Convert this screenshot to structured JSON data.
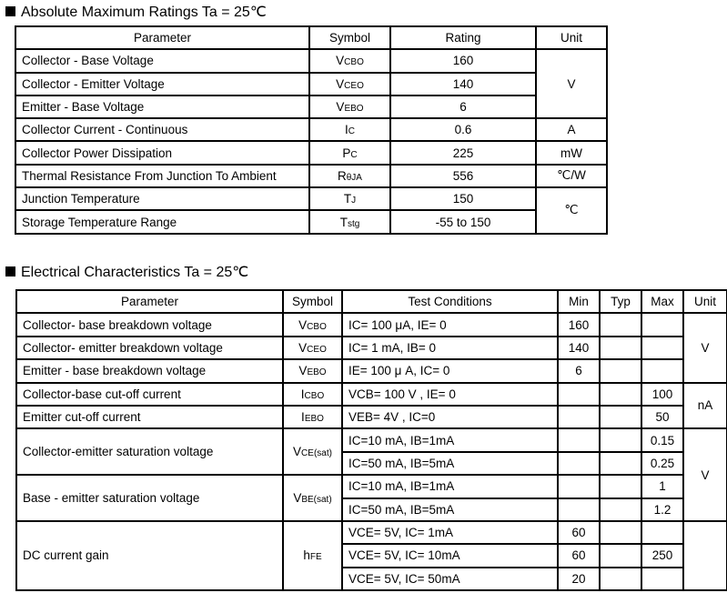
{
  "amr": {
    "title": "Absolute Maximum Ratings Ta = 25℃",
    "headers": [
      "Parameter",
      "Symbol",
      "Rating",
      "Unit"
    ],
    "rows": [
      {
        "param": "Collector - Base Voltage",
        "sym": "V",
        "sub": "CBO",
        "rating": "160"
      },
      {
        "param": "Collector - Emitter Voltage",
        "sym": "V",
        "sub": "CEO",
        "rating": "140"
      },
      {
        "param": "Emitter - Base Voltage",
        "sym": "V",
        "sub": "EBO",
        "rating": "6"
      },
      {
        "param": "Collector Current  - Continuous",
        "sym": "I",
        "sub": "C",
        "rating": "0.6"
      },
      {
        "param": "Collector Power Dissipation",
        "sym": "P",
        "sub": "C",
        "rating": "225"
      },
      {
        "param": "Thermal Resistance From Junction To Ambient",
        "sym": "R",
        "sub": "θJA",
        "rating": "556"
      },
      {
        "param": "Junction Temperature",
        "sym": "T",
        "sub": "J",
        "rating": "150"
      },
      {
        "param": "Storage Temperature Range",
        "sym": "T",
        "sub": "stg",
        "rating": "-55 to 150"
      }
    ],
    "units": [
      "V",
      "A",
      "mW",
      "℃/W",
      "℃"
    ]
  },
  "ec": {
    "title": "Electrical Characteristics Ta = 25℃",
    "headers": [
      "Parameter",
      "Symbol",
      "Test Conditions",
      "Min",
      "Typ",
      "Max",
      "Unit"
    ],
    "rows": [
      {
        "param": "Collector- base breakdown voltage",
        "sym": "V",
        "sub": "CBO",
        "cond": "IC= 100 μA,   IE= 0",
        "min": "160",
        "typ": "",
        "max": ""
      },
      {
        "param": "Collector- emitter breakdown voltage",
        "sym": "V",
        "sub": "CEO",
        "cond": "IC= 1 mA,   IB= 0",
        "min": "140",
        "typ": "",
        "max": ""
      },
      {
        "param": "Emitter - base breakdown voltage",
        "sym": "V",
        "sub": "EBO",
        "cond": "IE= 100 μ A,   IC= 0",
        "min": "6",
        "typ": "",
        "max": ""
      },
      {
        "param": "Collector-base cut-off current",
        "sym": "I",
        "sub": "CBO",
        "cond": "VCB= 100 V , IE= 0",
        "min": "",
        "typ": "",
        "max": "100"
      },
      {
        "param": "Emitter cut-off current",
        "sym": "I",
        "sub": "EBO",
        "cond": "VEB= 4V , IC=0",
        "min": "",
        "typ": "",
        "max": "50"
      }
    ],
    "groups": [
      {
        "param": "Collector-emitter saturation voltage",
        "sym": "V",
        "sub": "CE(sat)",
        "lines": [
          {
            "cond": "IC=10 mA, IB=1mA",
            "min": "",
            "typ": "",
            "max": "0.15"
          },
          {
            "cond": "IC=50 mA, IB=5mA",
            "min": "",
            "typ": "",
            "max": "0.25"
          }
        ]
      },
      {
        "param": "Base - emitter saturation voltage",
        "sym": "V",
        "sub": "BE(sat)",
        "lines": [
          {
            "cond": "IC=10 mA, IB=1mA",
            "min": "",
            "typ": "",
            "max": "1"
          },
          {
            "cond": "IC=50 mA, IB=5mA",
            "min": "",
            "typ": "",
            "max": "1.2"
          }
        ]
      },
      {
        "param": "DC current gain",
        "sym": "h",
        "sub": "FE",
        "lines": [
          {
            "cond": "VCE= 5V, IC= 1mA",
            "min": "60",
            "typ": "",
            "max": ""
          },
          {
            "cond": "VCE= 5V, IC= 10mA",
            "min": "60",
            "typ": "",
            "max": "250"
          },
          {
            "cond": "VCE= 5V, IC= 50mA",
            "min": "20",
            "typ": "",
            "max": ""
          }
        ]
      }
    ],
    "units": [
      "V",
      "nA",
      "V",
      ""
    ]
  }
}
